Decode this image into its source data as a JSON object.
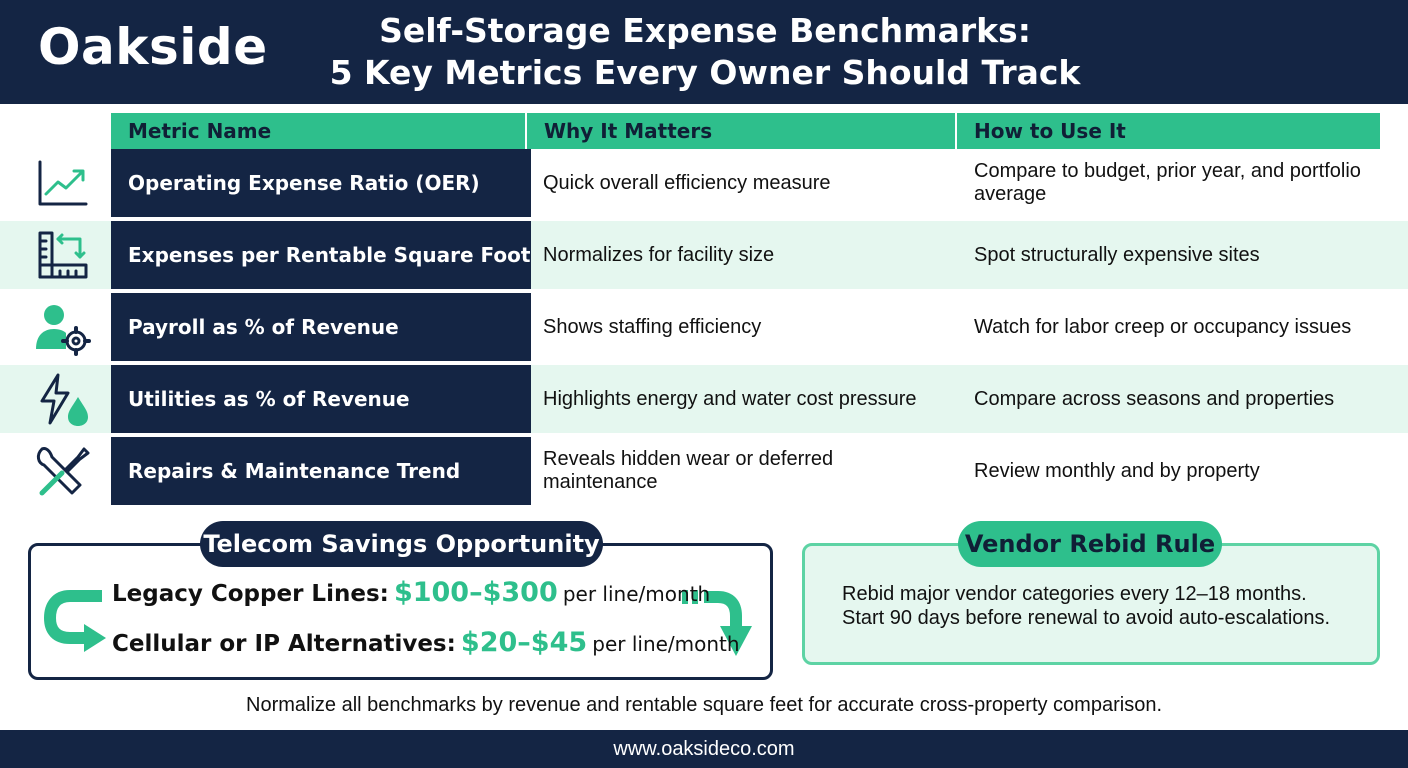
{
  "brand": "Oakside",
  "title_line1": "Self-Storage Expense Benchmarks:",
  "title_line2": "5 Key Metrics Every Owner Should Track",
  "columns": [
    "Metric Name",
    "Why It Matters",
    "How to Use It"
  ],
  "rows": [
    {
      "icon": "trend-chart-icon",
      "metric": "Operating Expense Ratio (OER)",
      "why": "Quick overall efficiency measure",
      "how": "Compare to budget, prior year, and portfolio average"
    },
    {
      "icon": "square-footage-icon",
      "metric": "Expenses per Rentable Square Foot",
      "why": "Normalizes for facility size",
      "how": "Spot structurally expensive sites"
    },
    {
      "icon": "staff-gear-icon",
      "metric": "Payroll as % of Revenue",
      "why": "Shows staffing efficiency",
      "how": "Watch for labor creep or occupancy issues"
    },
    {
      "icon": "energy-water-icon",
      "metric": "Utilities as % of Revenue",
      "why": "Highlights energy and water cost pressure",
      "how": "Compare across seasons and properties"
    },
    {
      "icon": "tools-icon",
      "metric": "Repairs & Maintenance Trend",
      "why": "Reveals hidden wear or deferred maintenance",
      "how": "Review monthly and by property"
    }
  ],
  "telecom": {
    "heading": "Telecom Savings Opportunity",
    "legacy_label": "Legacy Copper Lines:",
    "legacy_price": "$100–$300",
    "legacy_unit": "per line/month",
    "cellular_label": "Cellular or IP Alternatives:",
    "cellular_price": "$20–$45",
    "cellular_unit": "per line/month"
  },
  "vendor": {
    "heading": "Vendor Rebid Rule",
    "line1": "Rebid major vendor categories every 12–18 months.",
    "line2": "Start 90 days before renewal to avoid auto-escalations."
  },
  "note": "Normalize all benchmarks by revenue and rentable square feet for accurate cross-property comparison.",
  "footer": "www.oaksideco.com",
  "colors": {
    "navy": "#142544",
    "green": "#2ebf8c",
    "mint": "#e5f7ef"
  }
}
